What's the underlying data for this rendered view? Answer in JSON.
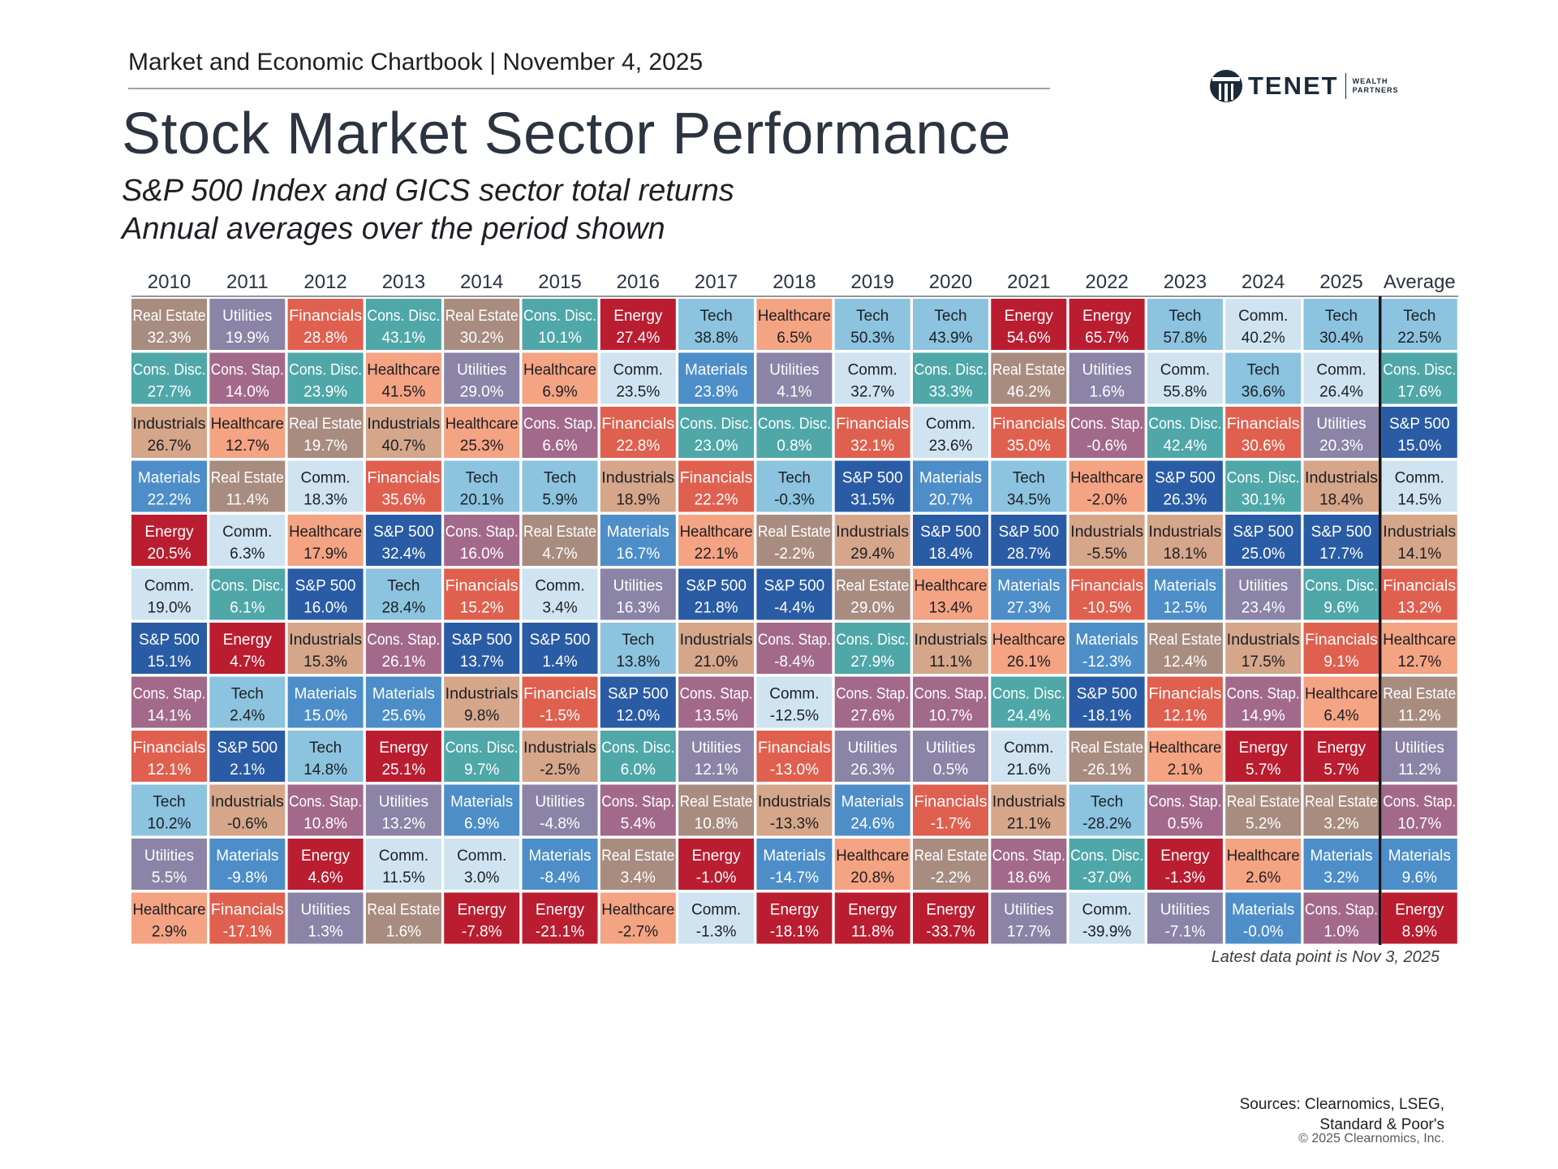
{
  "header": {
    "chartbook": "Market and Economic Chartbook | November 4, 2025",
    "title": "Stock Market Sector Performance",
    "subtitle_1": "S&P 500 Index and GICS sector total returns",
    "subtitle_2": "Annual averages over the period shown"
  },
  "logo": {
    "name": "TENET",
    "sub_1": "WEALTH",
    "sub_2": "PARTNERS"
  },
  "footer": {
    "note": "Latest data point is Nov 3, 2025",
    "sources_1": "Sources: Clearnomics, LSEG,",
    "sources_2": "Standard & Poor's",
    "copyright": "© 2025 Clearnomics, Inc."
  },
  "colors": {
    "Real Estate": "#a88c80",
    "Utilities": "#8b84a7",
    "Financials": "#e0604f",
    "Cons. Disc.": "#4fa7a8",
    "Energy": "#ba1d30",
    "Tech": "#8cc3df",
    "Healthcare": "#f4a383",
    "Comm.": "#cfe4f0",
    "Materials": "#4d8ec8",
    "Cons. Stap.": "#a2698a",
    "Industrials": "#d5a68a",
    "S&P 500": "#2a5ca5"
  },
  "chart_data": {
    "type": "table",
    "title": "Stock Market Sector Performance",
    "columns": [
      "2010",
      "2011",
      "2012",
      "2013",
      "2014",
      "2015",
      "2016",
      "2017",
      "2018",
      "2019",
      "2020",
      "2021",
      "2022",
      "2023",
      "2024",
      "2025",
      "Average"
    ],
    "rank_order": "highest to lowest return, top to bottom",
    "data": [
      [
        [
          "Real Estate",
          "32.3%"
        ],
        [
          "Cons. Disc.",
          "27.7%"
        ],
        [
          "Industrials",
          "26.7%"
        ],
        [
          "Materials",
          "22.2%"
        ],
        [
          "Energy",
          "20.5%"
        ],
        [
          "Comm.",
          "19.0%"
        ],
        [
          "S&P 500",
          "15.1%"
        ],
        [
          "Cons. Stap.",
          "14.1%"
        ],
        [
          "Financials",
          "12.1%"
        ],
        [
          "Tech",
          "10.2%"
        ],
        [
          "Utilities",
          "5.5%"
        ],
        [
          "Healthcare",
          "2.9%"
        ]
      ],
      [
        [
          "Utilities",
          "19.9%"
        ],
        [
          "Cons. Stap.",
          "14.0%"
        ],
        [
          "Healthcare",
          "12.7%"
        ],
        [
          "Real Estate",
          "11.4%"
        ],
        [
          "Comm.",
          "6.3%"
        ],
        [
          "Cons. Disc.",
          "6.1%"
        ],
        [
          "Energy",
          "4.7%"
        ],
        [
          "Tech",
          "2.4%"
        ],
        [
          "S&P 500",
          "2.1%"
        ],
        [
          "Industrials",
          "-0.6%"
        ],
        [
          "Materials",
          "-9.8%"
        ],
        [
          "Financials",
          "-17.1%"
        ]
      ],
      [
        [
          "Financials",
          "28.8%"
        ],
        [
          "Cons. Disc.",
          "23.9%"
        ],
        [
          "Real Estate",
          "19.7%"
        ],
        [
          "Comm.",
          "18.3%"
        ],
        [
          "Healthcare",
          "17.9%"
        ],
        [
          "S&P 500",
          "16.0%"
        ],
        [
          "Industrials",
          "15.3%"
        ],
        [
          "Materials",
          "15.0%"
        ],
        [
          "Tech",
          "14.8%"
        ],
        [
          "Cons. Stap.",
          "10.8%"
        ],
        [
          "Energy",
          "4.6%"
        ],
        [
          "Utilities",
          "1.3%"
        ]
      ],
      [
        [
          "Cons. Disc.",
          "43.1%"
        ],
        [
          "Healthcare",
          "41.5%"
        ],
        [
          "Industrials",
          "40.7%"
        ],
        [
          "Financials",
          "35.6%"
        ],
        [
          "S&P 500",
          "32.4%"
        ],
        [
          "Tech",
          "28.4%"
        ],
        [
          "Cons. Stap.",
          "26.1%"
        ],
        [
          "Materials",
          "25.6%"
        ],
        [
          "Energy",
          "25.1%"
        ],
        [
          "Utilities",
          "13.2%"
        ],
        [
          "Comm.",
          "11.5%"
        ],
        [
          "Real Estate",
          "1.6%"
        ]
      ],
      [
        [
          "Real Estate",
          "30.2%"
        ],
        [
          "Utilities",
          "29.0%"
        ],
        [
          "Healthcare",
          "25.3%"
        ],
        [
          "Tech",
          "20.1%"
        ],
        [
          "Cons. Stap.",
          "16.0%"
        ],
        [
          "Financials",
          "15.2%"
        ],
        [
          "S&P 500",
          "13.7%"
        ],
        [
          "Industrials",
          "9.8%"
        ],
        [
          "Cons. Disc.",
          "9.7%"
        ],
        [
          "Materials",
          "6.9%"
        ],
        [
          "Comm.",
          "3.0%"
        ],
        [
          "Energy",
          "-7.8%"
        ]
      ],
      [
        [
          "Cons. Disc.",
          "10.1%"
        ],
        [
          "Healthcare",
          "6.9%"
        ],
        [
          "Cons. Stap.",
          "6.6%"
        ],
        [
          "Tech",
          "5.9%"
        ],
        [
          "Real Estate",
          "4.7%"
        ],
        [
          "Comm.",
          "3.4%"
        ],
        [
          "S&P 500",
          "1.4%"
        ],
        [
          "Financials",
          "-1.5%"
        ],
        [
          "Industrials",
          "-2.5%"
        ],
        [
          "Utilities",
          "-4.8%"
        ],
        [
          "Materials",
          "-8.4%"
        ],
        [
          "Energy",
          "-21.1%"
        ]
      ],
      [
        [
          "Energy",
          "27.4%"
        ],
        [
          "Comm.",
          "23.5%"
        ],
        [
          "Financials",
          "22.8%"
        ],
        [
          "Industrials",
          "18.9%"
        ],
        [
          "Materials",
          "16.7%"
        ],
        [
          "Utilities",
          "16.3%"
        ],
        [
          "Tech",
          "13.8%"
        ],
        [
          "S&P 500",
          "12.0%"
        ],
        [
          "Cons. Disc.",
          "6.0%"
        ],
        [
          "Cons. Stap.",
          "5.4%"
        ],
        [
          "Real Estate",
          "3.4%"
        ],
        [
          "Healthcare",
          "-2.7%"
        ]
      ],
      [
        [
          "Tech",
          "38.8%"
        ],
        [
          "Materials",
          "23.8%"
        ],
        [
          "Cons. Disc.",
          "23.0%"
        ],
        [
          "Financials",
          "22.2%"
        ],
        [
          "Healthcare",
          "22.1%"
        ],
        [
          "S&P 500",
          "21.8%"
        ],
        [
          "Industrials",
          "21.0%"
        ],
        [
          "Cons. Stap.",
          "13.5%"
        ],
        [
          "Utilities",
          "12.1%"
        ],
        [
          "Real Estate",
          "10.8%"
        ],
        [
          "Energy",
          "-1.0%"
        ],
        [
          "Comm.",
          "-1.3%"
        ]
      ],
      [
        [
          "Healthcare",
          "6.5%"
        ],
        [
          "Utilities",
          "4.1%"
        ],
        [
          "Cons. Disc.",
          "0.8%"
        ],
        [
          "Tech",
          "-0.3%"
        ],
        [
          "Real Estate",
          "-2.2%"
        ],
        [
          "S&P 500",
          "-4.4%"
        ],
        [
          "Cons. Stap.",
          "-8.4%"
        ],
        [
          "Comm.",
          "-12.5%"
        ],
        [
          "Financials",
          "-13.0%"
        ],
        [
          "Industrials",
          "-13.3%"
        ],
        [
          "Materials",
          "-14.7%"
        ],
        [
          "Energy",
          "-18.1%"
        ]
      ],
      [
        [
          "Tech",
          "50.3%"
        ],
        [
          "Comm.",
          "32.7%"
        ],
        [
          "Financials",
          "32.1%"
        ],
        [
          "S&P 500",
          "31.5%"
        ],
        [
          "Industrials",
          "29.4%"
        ],
        [
          "Real Estate",
          "29.0%"
        ],
        [
          "Cons. Disc.",
          "27.9%"
        ],
        [
          "Cons. Stap.",
          "27.6%"
        ],
        [
          "Utilities",
          "26.3%"
        ],
        [
          "Materials",
          "24.6%"
        ],
        [
          "Healthcare",
          "20.8%"
        ],
        [
          "Energy",
          "11.8%"
        ]
      ],
      [
        [
          "Tech",
          "43.9%"
        ],
        [
          "Cons. Disc.",
          "33.3%"
        ],
        [
          "Comm.",
          "23.6%"
        ],
        [
          "Materials",
          "20.7%"
        ],
        [
          "S&P 500",
          "18.4%"
        ],
        [
          "Healthcare",
          "13.4%"
        ],
        [
          "Industrials",
          "11.1%"
        ],
        [
          "Cons. Stap.",
          "10.7%"
        ],
        [
          "Utilities",
          "0.5%"
        ],
        [
          "Financials",
          "-1.7%"
        ],
        [
          "Real Estate",
          "-2.2%"
        ],
        [
          "Energy",
          "-33.7%"
        ]
      ],
      [
        [
          "Energy",
          "54.6%"
        ],
        [
          "Real Estate",
          "46.2%"
        ],
        [
          "Financials",
          "35.0%"
        ],
        [
          "Tech",
          "34.5%"
        ],
        [
          "S&P 500",
          "28.7%"
        ],
        [
          "Materials",
          "27.3%"
        ],
        [
          "Healthcare",
          "26.1%"
        ],
        [
          "Cons. Disc.",
          "24.4%"
        ],
        [
          "Comm.",
          "21.6%"
        ],
        [
          "Industrials",
          "21.1%"
        ],
        [
          "Cons. Stap.",
          "18.6%"
        ],
        [
          "Utilities",
          "17.7%"
        ]
      ],
      [
        [
          "Energy",
          "65.7%"
        ],
        [
          "Utilities",
          "1.6%"
        ],
        [
          "Cons. Stap.",
          "-0.6%"
        ],
        [
          "Healthcare",
          "-2.0%"
        ],
        [
          "Industrials",
          "-5.5%"
        ],
        [
          "Financials",
          "-10.5%"
        ],
        [
          "Materials",
          "-12.3%"
        ],
        [
          "S&P 500",
          "-18.1%"
        ],
        [
          "Real Estate",
          "-26.1%"
        ],
        [
          "Tech",
          "-28.2%"
        ],
        [
          "Cons. Disc.",
          "-37.0%"
        ],
        [
          "Comm.",
          "-39.9%"
        ]
      ],
      [
        [
          "Tech",
          "57.8%"
        ],
        [
          "Comm.",
          "55.8%"
        ],
        [
          "Cons. Disc.",
          "42.4%"
        ],
        [
          "S&P 500",
          "26.3%"
        ],
        [
          "Industrials",
          "18.1%"
        ],
        [
          "Materials",
          "12.5%"
        ],
        [
          "Real Estate",
          "12.4%"
        ],
        [
          "Financials",
          "12.1%"
        ],
        [
          "Healthcare",
          "2.1%"
        ],
        [
          "Cons. Stap.",
          "0.5%"
        ],
        [
          "Energy",
          "-1.3%"
        ],
        [
          "Utilities",
          "-7.1%"
        ]
      ],
      [
        [
          "Comm.",
          "40.2%"
        ],
        [
          "Tech",
          "36.6%"
        ],
        [
          "Financials",
          "30.6%"
        ],
        [
          "Cons. Disc.",
          "30.1%"
        ],
        [
          "S&P 500",
          "25.0%"
        ],
        [
          "Utilities",
          "23.4%"
        ],
        [
          "Industrials",
          "17.5%"
        ],
        [
          "Cons. Stap.",
          "14.9%"
        ],
        [
          "Energy",
          "5.7%"
        ],
        [
          "Real Estate",
          "5.2%"
        ],
        [
          "Healthcare",
          "2.6%"
        ],
        [
          "Materials",
          "-0.0%"
        ]
      ],
      [
        [
          "Tech",
          "30.4%"
        ],
        [
          "Comm.",
          "26.4%"
        ],
        [
          "Utilities",
          "20.3%"
        ],
        [
          "Industrials",
          "18.4%"
        ],
        [
          "S&P 500",
          "17.7%"
        ],
        [
          "Cons. Disc.",
          "9.6%"
        ],
        [
          "Financials",
          "9.1%"
        ],
        [
          "Healthcare",
          "6.4%"
        ],
        [
          "Energy",
          "5.7%"
        ],
        [
          "Real Estate",
          "3.2%"
        ],
        [
          "Materials",
          "3.2%"
        ],
        [
          "Cons. Stap.",
          "1.0%"
        ]
      ],
      [
        [
          "Tech",
          "22.5%"
        ],
        [
          "Cons. Disc.",
          "17.6%"
        ],
        [
          "S&P 500",
          "15.0%"
        ],
        [
          "Comm.",
          "14.5%"
        ],
        [
          "Industrials",
          "14.1%"
        ],
        [
          "Financials",
          "13.2%"
        ],
        [
          "Healthcare",
          "12.7%"
        ],
        [
          "Real Estate",
          "11.2%"
        ],
        [
          "Utilities",
          "11.2%"
        ],
        [
          "Cons. Stap.",
          "10.7%"
        ],
        [
          "Materials",
          "9.6%"
        ],
        [
          "Energy",
          "8.9%"
        ]
      ]
    ]
  }
}
